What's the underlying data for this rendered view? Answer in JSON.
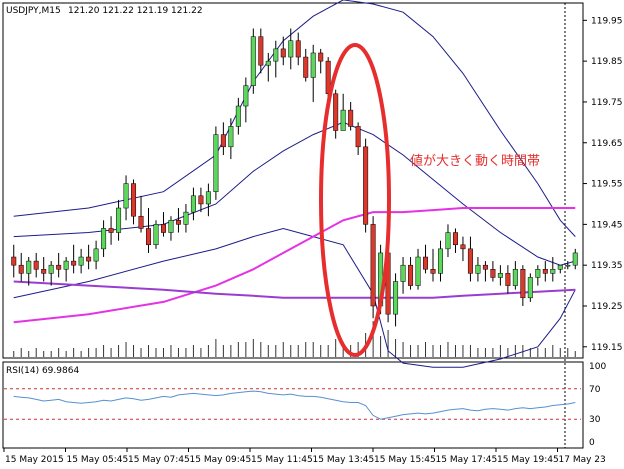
{
  "chart_info": {
    "symbol_label": "USDJPY,M15",
    "ohlc_label": "121.20 121.22 121.19 121.22",
    "rsi_label": "RSI(14) 69.9864",
    "annotation_text": "値が大きく動く時間帯"
  },
  "colors": {
    "bull_body": "#5CD65C",
    "bear_body": "#D9382B",
    "wick": "#000000",
    "bollinger": "#1C1C8C",
    "ma_fast": "#E432E4",
    "ma_slow": "#9A3CCF",
    "rsi_line": "#5591D3",
    "rsi_levels": "#CC3333",
    "ellipse": "#E62E2E",
    "annotation": "#E62E2E"
  },
  "chart_data": {
    "type": "candlestick",
    "y_ticks": [
      "119.95",
      "119.85",
      "119.75",
      "119.65",
      "119.55",
      "119.45",
      "119.35",
      "119.25",
      "119.15"
    ],
    "ylim": [
      119.125,
      119.99
    ],
    "x_labels": [
      "15 May 2015",
      "15 May 05:45",
      "15 May 07:45",
      "15 May 09:45",
      "15 May 11:45",
      "15 May 13:45",
      "15 May 15:45",
      "15 May 17:45",
      "15 May 19:45",
      "17 May 23"
    ],
    "candles": [
      [
        119.37,
        119.4,
        119.32,
        119.35
      ],
      [
        119.35,
        119.38,
        119.31,
        119.33
      ],
      [
        119.33,
        119.37,
        119.3,
        119.36
      ],
      [
        119.36,
        119.38,
        119.32,
        119.34
      ],
      [
        119.34,
        119.37,
        119.31,
        119.33
      ],
      [
        119.33,
        119.36,
        119.3,
        119.35
      ],
      [
        119.35,
        119.38,
        119.32,
        119.34
      ],
      [
        119.34,
        119.37,
        119.31,
        119.36
      ],
      [
        119.36,
        119.4,
        119.33,
        119.35
      ],
      [
        119.35,
        119.39,
        119.33,
        119.37
      ],
      [
        119.37,
        119.4,
        119.34,
        119.36
      ],
      [
        119.36,
        119.41,
        119.34,
        119.39
      ],
      [
        119.39,
        119.46,
        119.37,
        119.44
      ],
      [
        119.44,
        119.47,
        119.4,
        119.43
      ],
      [
        119.43,
        119.51,
        119.41,
        119.49
      ],
      [
        119.49,
        119.57,
        119.46,
        119.55
      ],
      [
        119.55,
        119.56,
        119.45,
        119.47
      ],
      [
        119.47,
        119.52,
        119.43,
        119.44
      ],
      [
        119.44,
        119.49,
        119.38,
        119.4
      ],
      [
        119.4,
        119.46,
        119.39,
        119.45
      ],
      [
        119.45,
        119.48,
        119.42,
        119.43
      ],
      [
        119.43,
        119.47,
        119.41,
        119.46
      ],
      [
        119.46,
        119.49,
        119.43,
        119.45
      ],
      [
        119.45,
        119.5,
        119.43,
        119.48
      ],
      [
        119.48,
        119.54,
        119.46,
        119.52
      ],
      [
        119.52,
        119.54,
        119.48,
        119.5
      ],
      [
        119.5,
        119.55,
        119.47,
        119.53
      ],
      [
        119.53,
        119.69,
        119.51,
        119.67
      ],
      [
        119.67,
        119.7,
        119.62,
        119.64
      ],
      [
        119.64,
        119.71,
        119.61,
        119.69
      ],
      [
        119.69,
        119.76,
        119.67,
        119.74
      ],
      [
        119.74,
        119.81,
        119.7,
        119.79
      ],
      [
        119.79,
        119.93,
        119.77,
        119.91
      ],
      [
        119.91,
        119.93,
        119.82,
        119.84
      ],
      [
        119.84,
        119.87,
        119.8,
        119.85
      ],
      [
        119.85,
        119.9,
        119.81,
        119.88
      ],
      [
        119.88,
        119.91,
        119.84,
        119.86
      ],
      [
        119.86,
        119.93,
        119.83,
        119.9
      ],
      [
        119.9,
        119.92,
        119.84,
        119.86
      ],
      [
        119.86,
        119.88,
        119.8,
        119.81
      ],
      [
        119.81,
        119.89,
        119.75,
        119.87
      ],
      [
        119.87,
        119.88,
        119.82,
        119.85
      ],
      [
        119.85,
        119.86,
        119.76,
        119.77
      ],
      [
        119.77,
        119.78,
        119.66,
        119.68
      ],
      [
        119.68,
        119.77,
        119.68,
        119.73
      ],
      [
        119.73,
        119.75,
        119.68,
        119.69
      ],
      [
        119.69,
        119.7,
        119.62,
        119.64
      ],
      [
        119.64,
        119.66,
        119.43,
        119.45
      ],
      [
        119.45,
        119.47,
        119.22,
        119.25
      ],
      [
        119.25,
        119.4,
        119.23,
        119.38
      ],
      [
        119.38,
        119.4,
        119.21,
        119.23
      ],
      [
        119.23,
        119.33,
        119.2,
        119.31
      ],
      [
        119.31,
        119.37,
        119.28,
        119.35
      ],
      [
        119.35,
        119.37,
        119.29,
        119.3
      ],
      [
        119.3,
        119.39,
        119.29,
        119.37
      ],
      [
        119.37,
        119.4,
        119.33,
        119.34
      ],
      [
        119.34,
        119.39,
        119.31,
        119.33
      ],
      [
        119.33,
        119.41,
        119.31,
        119.39
      ],
      [
        119.39,
        119.45,
        119.37,
        119.43
      ],
      [
        119.43,
        119.44,
        119.38,
        119.4
      ],
      [
        119.4,
        119.42,
        119.36,
        119.39
      ],
      [
        119.39,
        119.42,
        119.31,
        119.33
      ],
      [
        119.33,
        119.37,
        119.31,
        119.35
      ],
      [
        119.35,
        119.36,
        119.31,
        119.34
      ],
      [
        119.34,
        119.36,
        119.31,
        119.32
      ],
      [
        119.32,
        119.35,
        119.3,
        119.33
      ],
      [
        119.33,
        119.35,
        119.28,
        119.3
      ],
      [
        119.3,
        119.36,
        119.29,
        119.34
      ],
      [
        119.34,
        119.35,
        119.25,
        119.27
      ],
      [
        119.27,
        119.33,
        119.26,
        119.32
      ],
      [
        119.32,
        119.35,
        119.3,
        119.34
      ],
      [
        119.34,
        119.36,
        119.31,
        119.33
      ],
      [
        119.33,
        119.37,
        119.31,
        119.34
      ],
      [
        119.34,
        119.35,
        119.33,
        119.35
      ],
      [
        119.35,
        119.36,
        119.34,
        119.35
      ],
      [
        119.35,
        119.39,
        119.34,
        119.38
      ]
    ],
    "volumes": [
      2,
      3,
      2,
      3,
      2,
      2,
      3,
      2,
      3,
      2,
      3,
      3,
      4,
      3,
      4,
      5,
      4,
      3,
      4,
      3,
      3,
      4,
      3,
      3,
      4,
      3,
      4,
      6,
      4,
      4,
      5,
      5,
      6,
      5,
      4,
      4,
      5,
      4,
      4,
      5,
      5,
      4,
      4,
      6,
      5,
      4,
      5,
      8,
      12,
      7,
      9,
      6,
      5,
      4,
      4,
      5,
      4,
      4,
      5,
      4,
      4,
      4,
      3,
      3,
      3,
      4,
      3,
      4,
      4,
      3,
      3,
      3,
      4,
      3,
      3,
      2
    ],
    "bollinger_upper": [
      [
        0,
        119.47
      ],
      [
        10,
        119.49
      ],
      [
        20,
        119.53
      ],
      [
        27,
        119.62
      ],
      [
        32,
        119.8
      ],
      [
        36,
        119.9
      ],
      [
        40,
        119.96
      ],
      [
        44,
        120.0
      ],
      [
        48,
        119.99
      ],
      [
        52,
        119.97
      ],
      [
        56,
        119.91
      ],
      [
        60,
        119.82
      ],
      [
        65,
        119.68
      ],
      [
        70,
        119.55
      ],
      [
        73,
        119.46
      ],
      [
        75,
        119.42
      ]
    ],
    "bollinger_mid": [
      [
        0,
        119.42
      ],
      [
        10,
        119.43
      ],
      [
        20,
        119.45
      ],
      [
        27,
        119.5
      ],
      [
        32,
        119.58
      ],
      [
        36,
        119.63
      ],
      [
        40,
        119.67
      ],
      [
        44,
        119.7
      ],
      [
        48,
        119.67
      ],
      [
        52,
        119.62
      ],
      [
        56,
        119.56
      ],
      [
        60,
        119.5
      ],
      [
        65,
        119.43
      ],
      [
        70,
        119.37
      ],
      [
        73,
        119.35
      ],
      [
        75,
        119.36
      ]
    ],
    "bollinger_lower": [
      [
        0,
        119.27
      ],
      [
        10,
        119.31
      ],
      [
        20,
        119.36
      ],
      [
        27,
        119.39
      ],
      [
        32,
        119.42
      ],
      [
        36,
        119.44
      ],
      [
        40,
        119.42
      ],
      [
        44,
        119.4
      ],
      [
        48,
        119.28
      ],
      [
        50,
        119.14
      ],
      [
        52,
        119.11
      ],
      [
        56,
        119.1
      ],
      [
        60,
        119.1
      ],
      [
        65,
        119.12
      ],
      [
        70,
        119.15
      ],
      [
        73,
        119.22
      ],
      [
        75,
        119.29
      ]
    ],
    "ma_fast": [
      [
        0,
        119.21
      ],
      [
        10,
        119.23
      ],
      [
        20,
        119.26
      ],
      [
        27,
        119.3
      ],
      [
        32,
        119.34
      ],
      [
        36,
        119.38
      ],
      [
        40,
        119.42
      ],
      [
        44,
        119.46
      ],
      [
        48,
        119.48
      ],
      [
        52,
        119.48
      ],
      [
        56,
        119.485
      ],
      [
        60,
        119.49
      ],
      [
        65,
        119.49
      ],
      [
        70,
        119.49
      ],
      [
        75,
        119.49
      ]
    ],
    "ma_slow": [
      [
        0,
        119.31
      ],
      [
        10,
        119.3
      ],
      [
        20,
        119.29
      ],
      [
        27,
        119.28
      ],
      [
        32,
        119.275
      ],
      [
        36,
        119.27
      ],
      [
        40,
        119.27
      ],
      [
        44,
        119.27
      ],
      [
        48,
        119.27
      ],
      [
        52,
        119.27
      ],
      [
        56,
        119.27
      ],
      [
        60,
        119.275
      ],
      [
        65,
        119.28
      ],
      [
        70,
        119.285
      ],
      [
        75,
        119.29
      ]
    ],
    "rsi": {
      "levels": [
        "100",
        "70",
        "30",
        "0"
      ],
      "values": [
        60,
        59,
        58,
        56,
        54,
        55,
        56,
        53,
        52,
        51,
        52,
        53,
        55,
        54,
        56,
        58,
        57,
        55,
        56,
        58,
        60,
        59,
        62,
        63,
        64,
        63,
        62,
        61,
        62,
        64,
        65,
        66,
        67,
        66,
        64,
        63,
        62,
        63,
        61,
        60,
        60,
        59,
        57,
        55,
        53,
        52,
        52,
        48,
        35,
        30,
        32,
        34,
        36,
        37,
        38,
        37,
        38,
        40,
        42,
        43,
        44,
        42,
        41,
        43,
        44,
        43,
        42,
        44,
        45,
        44,
        45,
        46,
        48,
        49,
        50,
        52
      ]
    },
    "price_marker": "121.22"
  }
}
